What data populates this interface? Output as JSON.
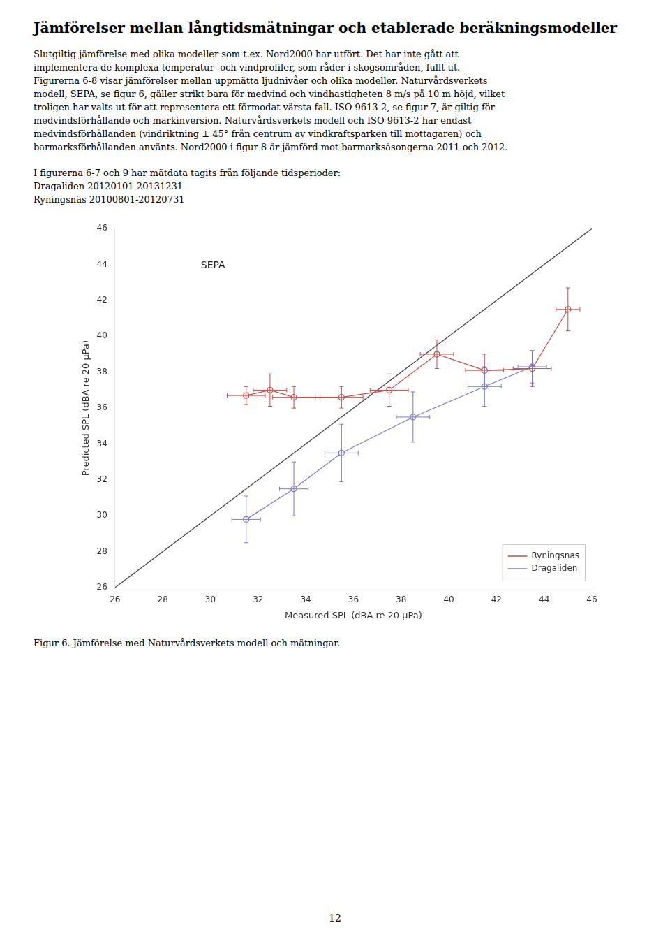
{
  "chart_data": {
    "type": "scatter",
    "title": "Jämförelser mellan långtidsmätningar och etablerade beräkningsmodeller",
    "paragraphs": [
      [
        "Slutgiltig jämförelse med olika modeller som t.ex. Nord2000 har utfört. Det har inte gått att",
        "implementera de komplexa temperatur- och vindprofiler, som råder i skogsområden, fullt ut.",
        "Figurerna 6-8 visar jämförelser mellan uppmätta ljudnivåer och olika modeller. Naturvårdsverkets",
        "modell, SEPA, se figur 6, gäller strikt bara för medvind och vindhastigheten 8 m/s på 10 m höjd, vilket",
        "troligen har valts ut för att representera ett förmodat värsta fall. ISO 9613-2, se figur 7, är giltig för",
        "medvindsförhållande och markinversion. Naturvårdsverkets modell och ISO 9613-2 har endast",
        "medvindsförhållanden (vindriktning ± 45° från centrum av vindkraftsparken till mottagaren) och",
        "barmarksförhållanden använts. Nord2000 i figur 8 är jämförd mot barmarksäsongerna 2011 och 2012."
      ],
      [
        "I figurerna 6-7 och 9 har mätdata tagits från följande tidsperioder:",
        "Dragaliden 20120101-20131231",
        "Ryningsnäs 20100801-20120731"
      ]
    ],
    "caption": "Figur 6. Jämförelse med Naturvårdsverkets modell och mätningar.",
    "page_number": "12",
    "annotation": "SEPA",
    "xlabel": "Measured SPL (dBA re 20 μPa)",
    "ylabel": "Predicted SPL (dBA re 20 μPa)",
    "xlim": [
      26,
      46
    ],
    "ylim": [
      26,
      46
    ],
    "xticks": [
      26,
      28,
      30,
      32,
      34,
      36,
      38,
      40,
      42,
      44,
      46
    ],
    "yticks": [
      26,
      28,
      30,
      32,
      34,
      36,
      38,
      40,
      42,
      44,
      46
    ],
    "grid": false,
    "legend": "lower right",
    "reference_line": {
      "x": [
        26,
        46
      ],
      "y": [
        26,
        46
      ],
      "color": "#3f3f3f"
    },
    "series": [
      {
        "name": "Ryningsnas",
        "color": "#c0504d",
        "marker": "circle",
        "line_style": "solid",
        "x": [
          31.5,
          32.5,
          33.5,
          35.5,
          37.5,
          39.5,
          41.5,
          43.5,
          45.0
        ],
        "y": [
          36.7,
          37.0,
          36.6,
          36.6,
          37.0,
          39.0,
          38.1,
          38.2,
          41.5
        ],
        "xerr": [
          0.8,
          0.7,
          0.9,
          0.9,
          0.8,
          0.7,
          0.8,
          0.8,
          0.5
        ],
        "yerr": [
          0.5,
          0.9,
          0.6,
          0.6,
          0.9,
          0.8,
          0.9,
          1.0,
          1.2
        ]
      },
      {
        "name": "Dragaliden",
        "color": "#7b7bcd",
        "marker": "circle",
        "line_style": "solid",
        "x": [
          31.5,
          33.5,
          35.5,
          38.5,
          41.5,
          43.5
        ],
        "y": [
          29.8,
          31.5,
          33.5,
          35.5,
          37.2,
          38.3
        ],
        "xerr": [
          0.6,
          0.6,
          0.7,
          0.7,
          0.7,
          0.6
        ],
        "yerr": [
          1.3,
          1.5,
          1.6,
          1.4,
          1.1,
          0.9
        ]
      }
    ]
  }
}
